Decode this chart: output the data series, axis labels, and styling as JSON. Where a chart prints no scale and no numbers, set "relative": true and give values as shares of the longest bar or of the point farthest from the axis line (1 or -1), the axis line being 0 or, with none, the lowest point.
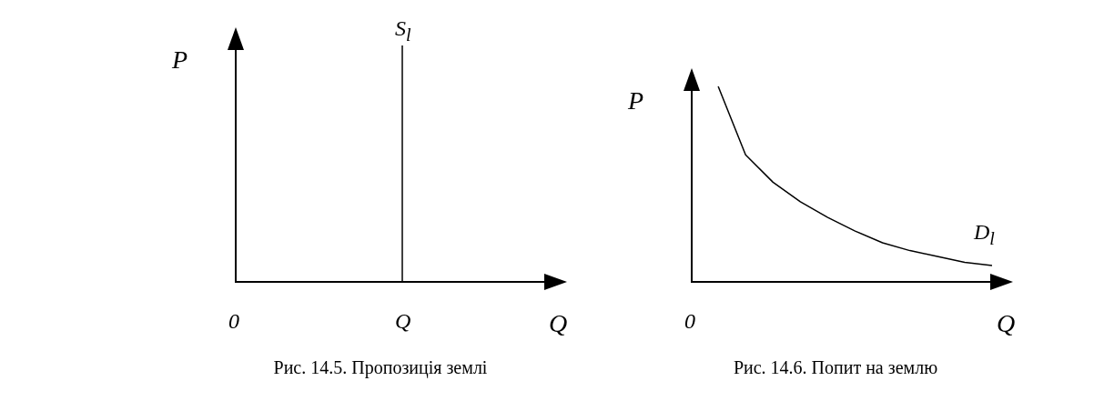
{
  "chart_data": [
    {
      "type": "other",
      "title": "Рис. 14.5. Пропозиція землі",
      "xlabel": "Q",
      "ylabel": "P",
      "annotations": [
        "0",
        "Q",
        "S$_{l}$"
      ]
    },
    {
      "type": "line",
      "title": "Рис. 14.6. Попит на землю",
      "xlabel": "Q",
      "ylabel": "P",
      "relative": true,
      "annotations": [
        "0"
      ],
      "categories": [
        null,
        null,
        null,
        null,
        null,
        null,
        null,
        null,
        null,
        null,
        null
      ],
      "series": [
        {
          "name": "D$_{l}$",
          "color": "#000000",
          "values": [
            1,
            0.65,
            0.51,
            0.41,
            0.33,
            0.26,
            0.2,
            0.16,
            0.13,
            0.1,
            0.084
          ]
        }
      ]
    }
  ]
}
